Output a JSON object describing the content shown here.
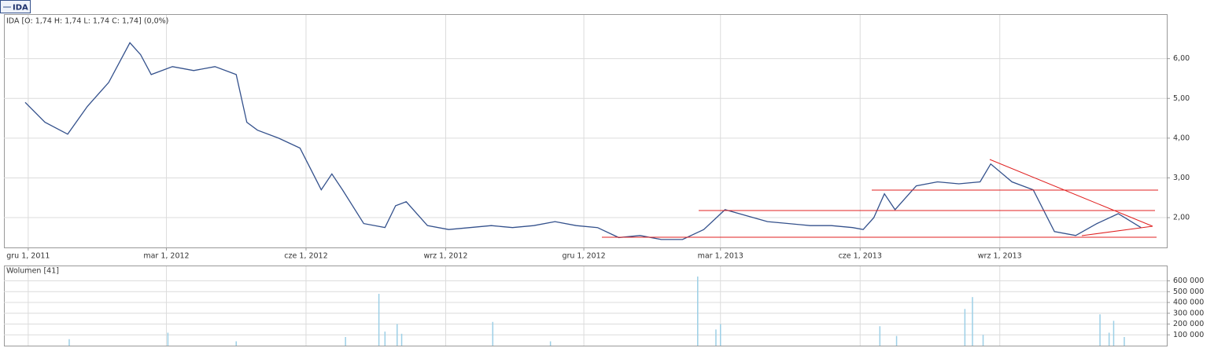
{
  "chart_data": [
    {
      "type": "line",
      "title": "IDA [O: 1,74  H: 1,74  L: 1,74  C: 1,74] (0,0%)",
      "x": [
        "2011-11-29",
        "2011-12-12",
        "2011-12-27",
        "2012-01-09",
        "2012-01-23",
        "2012-02-06",
        "2012-02-13",
        "2012-02-20",
        "2012-03-05",
        "2012-03-19",
        "2012-04-02",
        "2012-04-16",
        "2012-04-23",
        "2012-04-30",
        "2012-05-14",
        "2012-05-28",
        "2012-06-11",
        "2012-06-18",
        "2012-06-25",
        "2012-07-09",
        "2012-07-23",
        "2012-07-30",
        "2012-08-06",
        "2012-08-20",
        "2012-09-03",
        "2012-09-17",
        "2012-10-01",
        "2012-10-15",
        "2012-10-29",
        "2012-11-12",
        "2012-11-26",
        "2012-12-10",
        "2012-12-24",
        "2013-01-07",
        "2013-01-21",
        "2013-02-04",
        "2013-02-18",
        "2013-03-04",
        "2013-03-18",
        "2013-04-01",
        "2013-04-15",
        "2013-04-29",
        "2013-05-13",
        "2013-05-27",
        "2013-06-03",
        "2013-06-10",
        "2013-06-17",
        "2013-06-24",
        "2013-07-08",
        "2013-07-22",
        "2013-08-05",
        "2013-08-19",
        "2013-08-26",
        "2013-09-09",
        "2013-09-23",
        "2013-10-07",
        "2013-10-21",
        "2013-11-04",
        "2013-11-18",
        "2013-12-03"
      ],
      "series": [
        {
          "name": "IDA",
          "color": "#34518c",
          "values": [
            4.9,
            4.4,
            4.1,
            4.8,
            5.4,
            6.4,
            6.1,
            5.6,
            5.8,
            5.7,
            5.8,
            5.6,
            4.4,
            4.2,
            4.0,
            3.75,
            2.7,
            3.1,
            2.7,
            1.85,
            1.75,
            2.3,
            2.4,
            1.8,
            1.7,
            1.75,
            1.8,
            1.75,
            1.8,
            1.9,
            1.8,
            1.75,
            1.5,
            1.55,
            1.45,
            1.45,
            1.7,
            2.2,
            2.05,
            1.9,
            1.85,
            1.8,
            1.8,
            1.75,
            1.7,
            2.0,
            2.6,
            2.2,
            2.8,
            2.9,
            2.85,
            2.9,
            3.35,
            2.9,
            2.7,
            1.65,
            1.55,
            1.85,
            2.1,
            1.75
          ]
        }
      ],
      "xlim": [
        "2011-11-15",
        "2013-12-20"
      ],
      "xticks": [
        {
          "value": "2011-12-01",
          "label": "gru 1, 2011"
        },
        {
          "value": "2012-03-01",
          "label": "mar 1, 2012"
        },
        {
          "value": "2012-06-01",
          "label": "cze 1, 2012"
        },
        {
          "value": "2012-09-01",
          "label": "wrz 1, 2012"
        },
        {
          "value": "2012-12-01",
          "label": "gru 1, 2012"
        },
        {
          "value": "2013-03-01",
          "label": "mar 1, 2013"
        },
        {
          "value": "2013-06-01",
          "label": "cze 1, 2013"
        },
        {
          "value": "2013-09-01",
          "label": "wrz 1, 2013"
        }
      ],
      "ylim": [
        1.25,
        7.1
      ],
      "yticks": [
        {
          "value": 2,
          "label": "2,00"
        },
        {
          "value": 3,
          "label": "3,00"
        },
        {
          "value": 4,
          "label": "4,00"
        },
        {
          "value": 5,
          "label": "5,00"
        },
        {
          "value": 6,
          "label": "6,00"
        }
      ],
      "grid": true
    },
    {
      "type": "bar",
      "title": "Wolumen [41]",
      "x": [
        "2011-12-28",
        "2012-03-02",
        "2012-04-16",
        "2012-06-27",
        "2012-07-19",
        "2012-07-23",
        "2012-07-31",
        "2012-08-03",
        "2012-10-02",
        "2012-11-09",
        "2013-02-14",
        "2013-02-26",
        "2013-03-01",
        "2013-06-14",
        "2013-06-25",
        "2013-08-09",
        "2013-08-14",
        "2013-08-21",
        "2013-11-06",
        "2013-11-12",
        "2013-11-15",
        "2013-11-22"
      ],
      "values": [
        60000,
        120000,
        40000,
        80000,
        480000,
        130000,
        200000,
        110000,
        220000,
        40000,
        640000,
        150000,
        200000,
        180000,
        90000,
        340000,
        450000,
        100000,
        290000,
        120000,
        230000,
        80000
      ],
      "color": "#9ccfe6",
      "xlim": [
        "2011-11-15",
        "2013-12-20"
      ],
      "ylim": [
        0,
        735000
      ],
      "yticks": [
        {
          "value": 100000,
          "label": "100 000"
        },
        {
          "value": 200000,
          "label": "200 000"
        },
        {
          "value": 300000,
          "label": "300 000"
        },
        {
          "value": 400000,
          "label": "400 000"
        },
        {
          "value": 500000,
          "label": "500 000"
        },
        {
          "value": 600000,
          "label": "600 000"
        }
      ],
      "grid": true
    }
  ]
}
